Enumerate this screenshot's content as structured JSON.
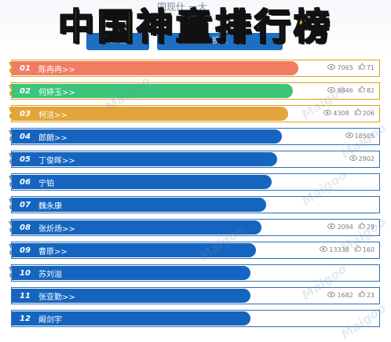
{
  "header": {
    "title": "中国神童排行榜",
    "bg_subtitle": "国现什 一大",
    "bg_tab1": "OP榜",
    "bg_tab2": "投票"
  },
  "watermark": "Maigoo",
  "rows": [
    {
      "rank": "01",
      "name": "陈冉冉>>",
      "views": "7065",
      "likes": "71",
      "color": "#f07c63",
      "medal": "gold"
    },
    {
      "rank": "02",
      "name": "何婷玉>>",
      "views": "9846",
      "likes": "82",
      "color": "#3cc47c",
      "medal": "gold"
    },
    {
      "rank": "03",
      "name": "柯洁>>",
      "views": "4308",
      "likes": "206",
      "color": "#e3a43a",
      "medal": "gold"
    },
    {
      "rank": "04",
      "name": "郎朗>>",
      "views": "18505",
      "likes": "",
      "color": "#1565c0",
      "medal": "blue"
    },
    {
      "rank": "05",
      "name": "丁俊晖>>",
      "views": "2902",
      "likes": "",
      "color": "#1565c0",
      "medal": "blue"
    },
    {
      "rank": "06",
      "name": "宁铂",
      "views": "",
      "likes": "",
      "color": "#1565c0",
      "medal": "blue"
    },
    {
      "rank": "07",
      "name": "魏永康",
      "views": "",
      "likes": "",
      "color": "#1565c0",
      "medal": "blue"
    },
    {
      "rank": "08",
      "name": "张炘炀>>",
      "views": "2094",
      "likes": "29",
      "color": "#1565c0",
      "medal": "blue"
    },
    {
      "rank": "09",
      "name": "曹原>>",
      "views": "13338",
      "likes": "160",
      "color": "#1565c0",
      "medal": "blue"
    },
    {
      "rank": "10",
      "name": "苏刘溢",
      "views": "",
      "likes": "",
      "color": "#1565c0",
      "medal": "blue"
    },
    {
      "rank": "11",
      "name": "张亚勤>>",
      "views": "1682",
      "likes": "23",
      "color": "#1565c0",
      "medal": "none"
    },
    {
      "rank": "12",
      "name": "阚剑宇",
      "views": "",
      "likes": "",
      "color": "#1565c0",
      "medal": "none"
    }
  ]
}
